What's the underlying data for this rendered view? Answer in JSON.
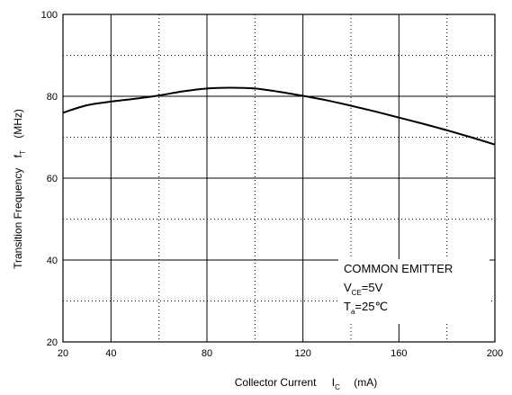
{
  "chart_data": {
    "type": "line",
    "x_axis": {
      "label_text": "Collector Current",
      "symbol": "I",
      "symbol_sub": "C",
      "unit": "(mA)",
      "range": [
        20,
        200
      ],
      "ticks": [
        20,
        40,
        80,
        120,
        160,
        200
      ],
      "grid_solid": [
        40,
        80,
        120,
        160
      ],
      "grid_dotted": [
        60,
        100,
        140,
        180
      ]
    },
    "y_axis": {
      "label_text": "Transition Frequency",
      "symbol": "f",
      "symbol_sub": "T",
      "unit": "(MHz)",
      "range": [
        20,
        100
      ],
      "ticks": [
        20,
        40,
        60,
        80,
        100
      ],
      "grid_solid": [
        40,
        60,
        80
      ],
      "grid_dotted": [
        30,
        50,
        70,
        90
      ]
    },
    "series": [
      {
        "x": [
          20,
          30,
          40,
          50,
          60,
          70,
          80,
          90,
          100,
          110,
          120,
          130,
          140,
          150,
          160,
          170,
          180,
          190,
          200
        ],
        "y": [
          76,
          77.8,
          78.7,
          79.4,
          80.2,
          81.2,
          81.9,
          82.1,
          81.9,
          81.1,
          80.1,
          79.0,
          77.7,
          76.3,
          74.8,
          73.3,
          71.7,
          70.0,
          68.2
        ]
      }
    ],
    "annotation": {
      "line1": "COMMON EMITTER",
      "line2_main": "V",
      "line2_sub": "CE",
      "line2_rest": "=5V",
      "line3_main": "T",
      "line3_sub": "a",
      "line3_rest": "=25℃"
    },
    "grid": true,
    "colors": {
      "line": "#000000",
      "grid": "#000000",
      "background": "#ffffff"
    }
  }
}
